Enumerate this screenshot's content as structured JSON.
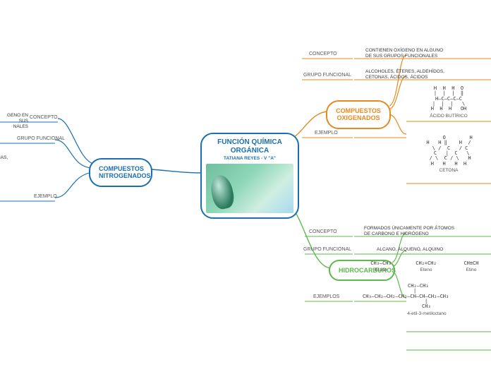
{
  "center": {
    "title": "FUNCIÓN QUÍMICA ORGÁNICA",
    "subtitle": "TATIANA REYES - V \"A\"",
    "border_color": "#1a6fb0",
    "text_color": "#1a6fb0"
  },
  "branches": {
    "nitrogenados": {
      "title": "COMPUESTOS NITROGENADOS",
      "color": "#1a6fb0",
      "items": {
        "concepto": {
          "label": "CONCEPTO",
          "text": "GENO EN SUS\nNALES"
        },
        "grupo": {
          "label": "GRUPO FUNCIONAL",
          "text": "NAS,"
        },
        "ejemplo": {
          "label": "EJEMPLO",
          "text": ""
        }
      }
    },
    "oxigenados": {
      "title": "COMPUESTOS OXIGENADOS",
      "color": "#e68a1f",
      "items": {
        "concepto": {
          "label": "CONCEPTO",
          "text": "CONTIENEN OXÍGENO EN ALGUNO\nDE SUS GRUPOS FUNCIONALES"
        },
        "grupo": {
          "label": "GRUPO FUNCIONAL",
          "text": "ALCOHOLES, ÉTERES, ALDEHÍDOS,\nCETONAS, ÁCIDOS, ÁCIDOS"
        },
        "ejemplo": {
          "label": "EJEMPLO",
          "acid_label": "ÁCIDO BUTÍRICO",
          "ketone_label": "CETONA"
        }
      }
    },
    "hidrocarburos": {
      "title": "HIDROCARBUROS",
      "color": "#5fb84d",
      "items": {
        "concepto": {
          "label": "CONCEPTO",
          "text": "FORMADOS ÚNICAMENTE POR ÁTOMOS\nDE CARBONO E HIDRÓGENO"
        },
        "grupo": {
          "label": "GRUPO FUNCIONAL",
          "text": "ALCANO, ALQUENO, ALQUINO"
        },
        "ejemplos": {
          "label": "EJEMPLOS",
          "etano": "Etano",
          "etano_f": "CH₃–CH₃",
          "eteno": "Eteno",
          "eteno_f": "CH₂=CH₂",
          "etino": "Etino",
          "etino_f": "CH≡CH",
          "long_name": "4-etil-3-metiloctano",
          "long_f1": "CH₂–CH₃",
          "long_f2": "CH₃–CH₂–CH₂–CH₂–CH–CH–CH₂–CH₃",
          "long_f3": "CH₃"
        }
      }
    }
  },
  "styling": {
    "background": "#ffffff",
    "connector_width": 1.4,
    "font_family": "Arial"
  }
}
